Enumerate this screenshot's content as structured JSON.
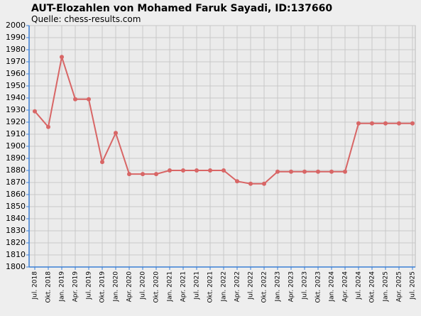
{
  "chart_data": {
    "type": "line",
    "title": "AUT-Elozahlen von Mohamed Faruk Sayadi, ID:137660",
    "subtitle": "Quelle: chess-results.com",
    "categories": [
      "Jul. 2018",
      "Okt. 2018",
      "Jan. 2019",
      "Apr. 2019",
      "Jul. 2019",
      "Okt. 2019",
      "Jan. 2020",
      "Apr. 2020",
      "Jul. 2020",
      "Okt. 2020",
      "Jan. 2021",
      "Apr. 2021",
      "Jul. 2021",
      "Okt. 2021",
      "Jan. 2022",
      "Apr. 2022",
      "Jul. 2022",
      "Okt. 2022",
      "Jan. 2023",
      "Apr. 2023",
      "Jul. 2023",
      "Okt. 2023",
      "Jan. 2024",
      "Apr. 2024",
      "Jul. 2024",
      "Okt. 2024",
      "Jan. 2025",
      "Apr. 2025",
      "Jul. 2025"
    ],
    "values": [
      1929,
      1916,
      1974,
      1939,
      1939,
      1887,
      1911,
      1877,
      1877,
      1877,
      1880,
      1880,
      1880,
      1880,
      1880,
      1871,
      1869,
      1869,
      1879,
      1879,
      1879,
      1879,
      1879,
      1879,
      1919,
      1919,
      1919,
      1919,
      1919
    ],
    "color": "#d86666",
    "ylim": [
      1800,
      2000
    ],
    "yticks": [
      1800,
      1810,
      1820,
      1830,
      1840,
      1850,
      1860,
      1870,
      1880,
      1890,
      1900,
      1910,
      1920,
      1930,
      1940,
      1950,
      1960,
      1970,
      1980,
      1990,
      2000
    ],
    "grid": true
  }
}
